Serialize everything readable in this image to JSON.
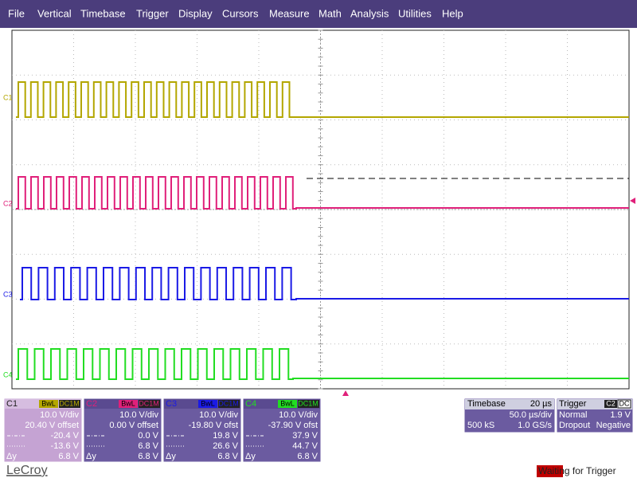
{
  "menu": [
    "File",
    "Vertical",
    "Timebase",
    "Trigger",
    "Display",
    "Cursors",
    "Measure",
    "Math",
    "Analysis",
    "Utilities",
    "Help"
  ],
  "channels": [
    {
      "name": "C1",
      "badges": [
        "BwL",
        "DC1M"
      ],
      "scale": "10.0 V/div",
      "offset": "20.40 V offset",
      "cursor1": "-20.4 V",
      "cursor2": "-13.6 V",
      "delta_label": "Δy",
      "delta": "6.8 V"
    },
    {
      "name": "C2",
      "badges": [
        "BwL",
        "DC1M"
      ],
      "scale": "10.0 V/div",
      "offset": "0.00 V offset",
      "cursor1": "0.0 V",
      "cursor2": "6.8 V",
      "delta_label": "Δy",
      "delta": "6.8 V"
    },
    {
      "name": "C3",
      "badges": [
        "BwL",
        "DC1M"
      ],
      "scale": "10.0 V/div",
      "offset": "-19.80 V ofst",
      "cursor1": "19.8 V",
      "cursor2": "26.6 V",
      "delta_label": "Δy",
      "delta": "6.8 V"
    },
    {
      "name": "C4",
      "badges": [
        "BwL",
        "DC1M"
      ],
      "scale": "10.0 V/div",
      "offset": "-37.90 V ofst",
      "cursor1": "37.9 V",
      "cursor2": "44.7 V",
      "delta_label": "Δy",
      "delta": "6.8 V"
    }
  ],
  "timebase": {
    "title": "Timebase",
    "delay": "20 µs",
    "scale": "50.0 µs/div",
    "samples": "500 kS",
    "rate": "1.0 GS/s"
  },
  "trigger": {
    "title": "Trigger",
    "source": "C2",
    "coupling": "DC",
    "mode": "Normal",
    "level": "1.9 V",
    "type": "Dropout",
    "slope": "Negative"
  },
  "logo": "LeCroy",
  "status": "Waiting for Trigger"
}
